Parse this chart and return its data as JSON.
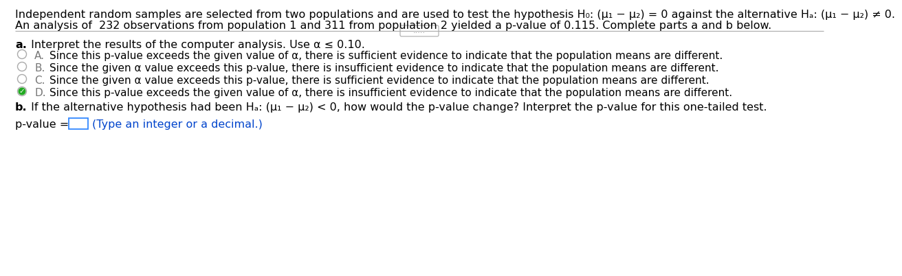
{
  "bg_color": "#ffffff",
  "line1": "Independent random samples are selected from two populations and are used to test the hypothesis H₀: (μ₁ − μ₂) = 0 against the alternative Hₐ: (μ₁ − μ₂) ≠ 0.",
  "line2": "An analysis of  232 observations from population 1 and 311 from population 2 yielded a p-value of 0.115. Complete parts a and b below.",
  "line2_bold_a": "a",
  "line2_bold_b": "b",
  "dots": ".....",
  "part_a_bold": "a.",
  "part_a_rest": " Interpret the results of the computer analysis. Use α ≤ 0.10.",
  "option_A_letter": "A.",
  "option_A_text": "  Since this p-value exceeds the given value of α, there is sufficient evidence to indicate that the population means are different.",
  "option_B_letter": "B.",
  "option_B_text": "  Since the given α value exceeds this p-value, there is insufficient evidence to indicate that the population means are different.",
  "option_C_letter": "C.",
  "option_C_text": "  Since the given α value exceeds this p-value, there is sufficient evidence to indicate that the population means are different.",
  "option_D_letter": "D.",
  "option_D_text": "  Since this p-value exceeds the given value of α, there is insufficient evidence to indicate that the population means are different.",
  "selected": "D",
  "part_b_bold": "b.",
  "part_b_rest": " If the alternative hypothesis had been Hₐ: (μ₁ − μ₂) < 0, how would the p-value change? Interpret the p-value for this one-tailed test.",
  "pvalue_label": "p-value = ",
  "pvalue_hint": "(Type an integer or a decimal.)",
  "radio_color": "#aaaaaa",
  "check_color": "#22aa22",
  "hint_color": "#0044cc",
  "line_color": "#aaaaaa",
  "letter_color": "#777777",
  "fs_main": 11.5,
  "fs_opt": 11.0
}
